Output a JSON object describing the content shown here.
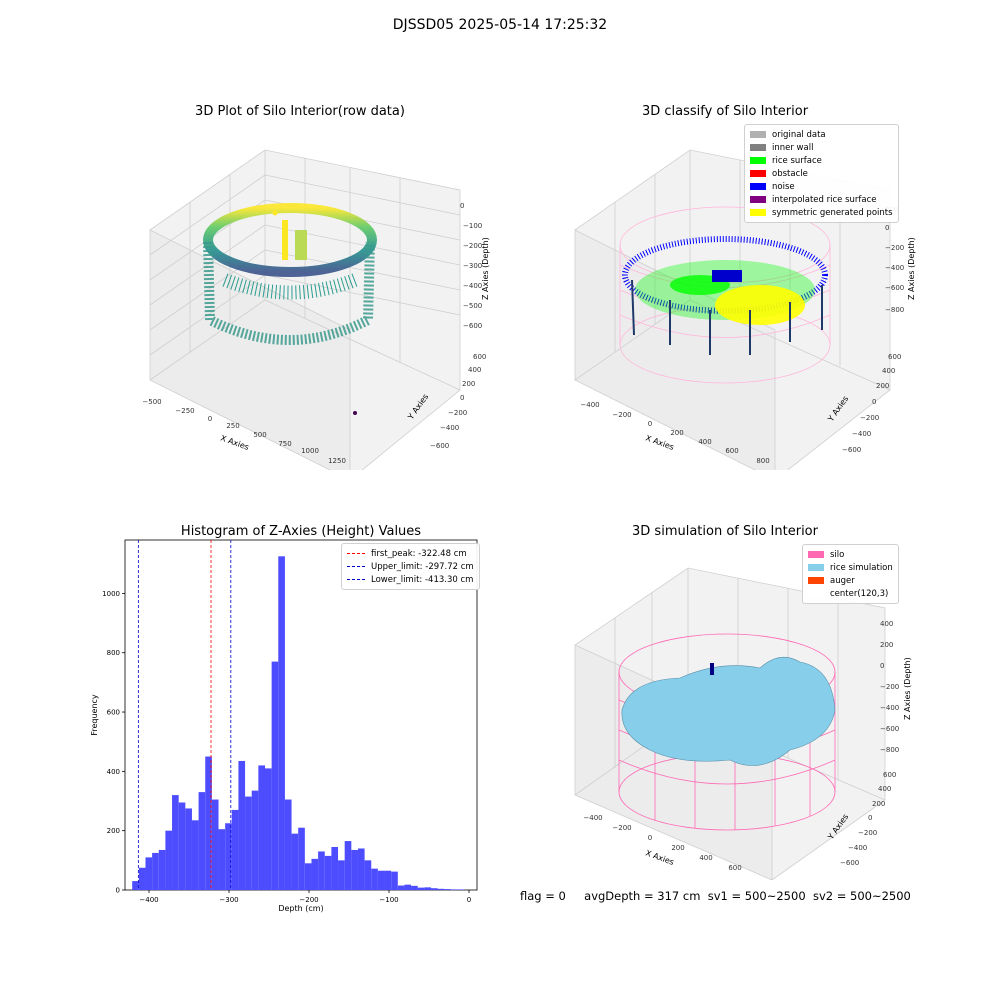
{
  "figure": {
    "title": "DJSSD05 2025-05-14 17:25:32"
  },
  "panels": {
    "raw": {
      "title": "3D Plot of Silo Interior(row data)",
      "xlabel": "X Axies",
      "ylabel": "Y Axies",
      "zlabel": "Z Axies (Depth)",
      "xticks": [
        "−500",
        "−250",
        "0",
        "250",
        "500",
        "750",
        "1000",
        "1250"
      ],
      "yticks": [
        "−600",
        "−400",
        "−200",
        "0",
        "200",
        "400",
        "600"
      ],
      "zticks": [
        "0",
        "−100",
        "−200",
        "−300",
        "−400",
        "−500",
        "−600"
      ],
      "colormap": [
        "#440154",
        "#3b528b",
        "#21918c",
        "#5ec962",
        "#fde725"
      ]
    },
    "classify": {
      "title": "3D classify of Silo Interior",
      "xlabel": "X Axies",
      "ylabel": "Y Axies",
      "zlabel": "Z Axies (Depth)",
      "xticks": [
        "−400",
        "−200",
        "0",
        "200",
        "400",
        "600",
        "800"
      ],
      "yticks": [
        "−600",
        "−400",
        "−200",
        "0",
        "200",
        "400",
        "600"
      ],
      "zticks": [
        "200",
        "0",
        "−200",
        "−400",
        "−600",
        "−800"
      ],
      "legend": [
        {
          "label": "original data",
          "color": "#b0b0b0"
        },
        {
          "label": "inner wall",
          "color": "#808080"
        },
        {
          "label": "rice surface",
          "color": "#00ff00"
        },
        {
          "label": "obstacle",
          "color": "#ff0000"
        },
        {
          "label": "noise",
          "color": "#0000ff"
        },
        {
          "label": "interpolated rice surface",
          "color": "#800080"
        },
        {
          "label": "symmetric generated points",
          "color": "#ffff00"
        }
      ]
    },
    "simulation": {
      "title": "3D simulation of Silo Interior",
      "xlabel": "X Axies",
      "ylabel": "Y Axies",
      "zlabel": "Z Axies (Depth)",
      "xticks": [
        "−400",
        "−200",
        "0",
        "200",
        "400",
        "600"
      ],
      "yticks": [
        "−600",
        "−400",
        "−200",
        "0",
        "200",
        "400",
        "600"
      ],
      "zticks": [
        "400",
        "200",
        "0",
        "−200",
        "−400",
        "−600",
        "−800"
      ],
      "legend": [
        {
          "label": "silo",
          "color": "#ff69b4"
        },
        {
          "label": "rice simulation",
          "color": "#87ceeb"
        },
        {
          "label": "auger",
          "color": "#ff4500"
        },
        {
          "label": "center(120,3)",
          "color": "#ffffff"
        }
      ]
    }
  },
  "status": {
    "flag": "flag = 0",
    "avg": "avgDepth = 317 cm",
    "sv1": "sv1 = 500~2500",
    "sv2": "sv2 = 500~2500"
  },
  "chart_data": [
    {
      "type": "bar",
      "title": "Histogram of Z-Axies (Height) Values",
      "xlabel": "Depth (cm)",
      "ylabel": "Frequency",
      "xlim": [
        -430,
        10
      ],
      "ylim": [
        0,
        1180
      ],
      "xticks": [
        -400,
        -300,
        -200,
        -100,
        0
      ],
      "yticks": [
        0,
        200,
        400,
        600,
        800,
        1000
      ],
      "bar_color": "#4d4dff",
      "bin_width": 8.3,
      "bin_start": -421,
      "values": [
        30,
        75,
        110,
        125,
        135,
        200,
        320,
        295,
        275,
        235,
        330,
        450,
        305,
        205,
        225,
        270,
        435,
        315,
        335,
        420,
        410,
        770,
        1125,
        305,
        190,
        210,
        90,
        105,
        130,
        115,
        145,
        100,
        165,
        135,
        140,
        100,
        72,
        65,
        65,
        62,
        15,
        18,
        14,
        8,
        9,
        6,
        4,
        3,
        2,
        2
      ],
      "vlines": [
        {
          "x": -322.48,
          "label": "first_peak: -322.48 cm",
          "color": "#ff0000"
        },
        {
          "x": -297.72,
          "label": "Upper_limit: -297.72 cm",
          "color": "#0000cc"
        },
        {
          "x": -413.3,
          "label": "Lower_limit: -413.30 cm",
          "color": "#0000cc"
        }
      ],
      "legend_position": "top-right"
    }
  ]
}
